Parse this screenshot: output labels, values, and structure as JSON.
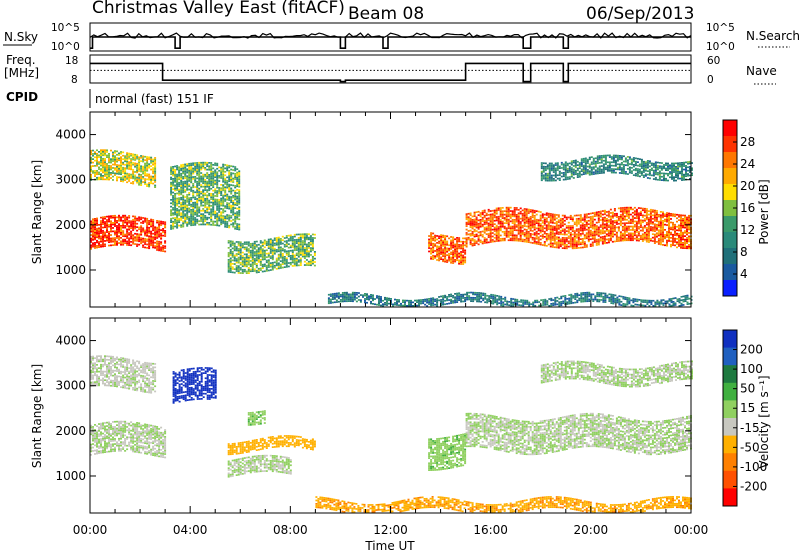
{
  "header": {
    "title": "Christmas Valley East (fitACF)",
    "beam": "Beam 08",
    "date": "06/Sep/2013"
  },
  "aux_panels": {
    "nsky_label": "N.Sky",
    "nsky_ticks": [
      "10^5",
      "10^0"
    ],
    "nsearch_label": "N.Search",
    "nsearch_ticks": [
      "10^5",
      "10^0"
    ],
    "freq_label": "Freq.",
    "freq_unit": "[MHz]",
    "freq_ticks": [
      "18",
      "8"
    ],
    "nave_label": "Nave",
    "nave_ticks": [
      "60",
      "0"
    ],
    "cpid_label": "CPID",
    "cpid_text": "normal (fast) 151 IF"
  },
  "axes": {
    "ylabel": "Slant Range [km]",
    "xlabel": "Time UT",
    "xticks": [
      "00:00",
      "04:00",
      "08:00",
      "12:00",
      "16:00",
      "20:00",
      "00:00"
    ],
    "yticks": [
      "1000",
      "2000",
      "3000",
      "4000"
    ]
  },
  "colorbars": {
    "power": {
      "label": "Power [dB]",
      "ticks": [
        "28",
        "24",
        "20",
        "16",
        "12",
        "8",
        "4"
      ],
      "colors": [
        "#ff0000",
        "#ff3300",
        "#ff7700",
        "#ffaa00",
        "#ffdd00",
        "#7fbf3f",
        "#3a9a6a",
        "#2a8a7a",
        "#20707a",
        "#1a5aa0",
        "#0a20ff"
      ]
    },
    "velocity": {
      "label": "Velocity [m s⁻¹]",
      "ticks": [
        "200",
        "100",
        "50",
        "15",
        "-15",
        "-50",
        "-100",
        "-200"
      ],
      "colors": [
        "#1030c0",
        "#2060c0",
        "#1e7a40",
        "#40b040",
        "#90d060",
        "#c8c8c0",
        "#ffb000",
        "#ff8000",
        "#ff5000",
        "#ff0000"
      ]
    }
  },
  "chart_data": [
    {
      "type": "heatmap",
      "name": "Power",
      "x_range_hours": [
        0,
        24
      ],
      "y_range_km": [
        180,
        4500
      ],
      "colorbar_label": "Power [dB]",
      "colorbar_range": [
        0,
        32
      ],
      "features": [
        {
          "t0": 0.0,
          "t1": 3.0,
          "r0": 1450,
          "r1": 2100,
          "value": 28
        },
        {
          "t0": 0.0,
          "t1": 2.6,
          "r0": 2900,
          "r1": 3550,
          "value": 18
        },
        {
          "t0": 3.2,
          "t1": 6.0,
          "r0": 1900,
          "r1": 3300,
          "value": 14
        },
        {
          "t0": 5.5,
          "t1": 9.0,
          "r0": 1000,
          "r1": 1700,
          "value": 14
        },
        {
          "t0": 13.5,
          "t1": 15.0,
          "r0": 1200,
          "r1": 1800,
          "value": 26
        },
        {
          "t0": 15.0,
          "t1": 24.0,
          "r0": 1550,
          "r1": 2300,
          "value": 26
        },
        {
          "t0": 18.0,
          "t1": 24.0,
          "r0": 3050,
          "r1": 3450,
          "value": 10
        },
        {
          "t0": 9.5,
          "t1": 24.0,
          "r0": 200,
          "r1": 400,
          "value": 8
        }
      ]
    },
    {
      "type": "heatmap",
      "name": "Velocity",
      "x_range_hours": [
        0,
        24
      ],
      "y_range_km": [
        180,
        4500
      ],
      "colorbar_label": "Velocity [m s⁻¹]",
      "colorbar_range": [
        -200,
        200
      ],
      "features": [
        {
          "t0": 0.0,
          "t1": 3.0,
          "r0": 1450,
          "r1": 2100,
          "value": 0
        },
        {
          "t0": 0.0,
          "t1": 2.6,
          "r0": 2900,
          "r1": 3550,
          "value": -10
        },
        {
          "t0": 3.3,
          "t1": 5.0,
          "r0": 2600,
          "r1": 3300,
          "value": 200
        },
        {
          "t0": 6.3,
          "t1": 7.0,
          "r0": 2200,
          "r1": 2500,
          "value": 30
        },
        {
          "t0": 5.5,
          "t1": 9.0,
          "r0": 1550,
          "r1": 1800,
          "value": -60
        },
        {
          "t0": 5.5,
          "t1": 8.0,
          "r0": 1000,
          "r1": 1350,
          "value": 0
        },
        {
          "t0": 13.5,
          "t1": 15.0,
          "r0": 1200,
          "r1": 1900,
          "value": 25
        },
        {
          "t0": 15.0,
          "t1": 24.0,
          "r0": 1550,
          "r1": 2300,
          "value": 0
        },
        {
          "t0": 18.0,
          "t1": 24.0,
          "r0": 3050,
          "r1": 3450,
          "value": 0
        },
        {
          "t0": 9.0,
          "t1": 24.0,
          "r0": 200,
          "r1": 450,
          "value": -70
        }
      ]
    }
  ]
}
